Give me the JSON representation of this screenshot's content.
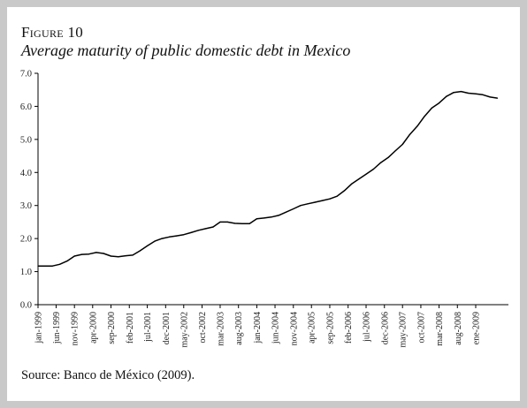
{
  "figure": {
    "label": "Figure 10",
    "title": "Average maturity of public domestic debt in Mexico",
    "source": "Source: Banco de México (2009)."
  },
  "chart_data": {
    "type": "line",
    "title": "Average maturity of public domestic debt in Mexico",
    "xlabel": "",
    "ylabel": "",
    "ylim": [
      0,
      7
    ],
    "yticks": [
      "0.0",
      "1.0",
      "2.0",
      "3.0",
      "4.0",
      "5.0",
      "6.0",
      "7.0"
    ],
    "xticks": [
      "jan-1999",
      "jun-1999",
      "nov-1999",
      "apr-2000",
      "sep-2000",
      "feb-2001",
      "jul-2001",
      "dec-2001",
      "may-2002",
      "oct-2002",
      "mar-2003",
      "aug-2003",
      "jan-2004",
      "jun-2004",
      "nov-2004",
      "apr-2005",
      "sep-2005",
      "feb-2006",
      "jul-2006",
      "dec-2006",
      "may-2007",
      "oct-2007",
      "mar-2008",
      "aug-2008",
      "ene-2009"
    ],
    "grid": false,
    "legend": "none",
    "line_color": "#000000",
    "series": [
      {
        "x": [
          "1999-01",
          "1999-03",
          "1999-05",
          "1999-07",
          "1999-09",
          "1999-11",
          "2000-01",
          "2000-03",
          "2000-05",
          "2000-07",
          "2000-09",
          "2000-11",
          "2001-01",
          "2001-03",
          "2001-05",
          "2001-07",
          "2001-09",
          "2001-11",
          "2002-01",
          "2002-03",
          "2002-05",
          "2002-07",
          "2002-09",
          "2002-11",
          "2003-01",
          "2003-03",
          "2003-05",
          "2003-07",
          "2003-09",
          "2003-11",
          "2004-01",
          "2004-03",
          "2004-05",
          "2004-07",
          "2004-09",
          "2004-11",
          "2005-01",
          "2005-03",
          "2005-05",
          "2005-07",
          "2005-09",
          "2005-11",
          "2006-01",
          "2006-03",
          "2006-05",
          "2006-07",
          "2006-09",
          "2006-11",
          "2007-01",
          "2007-03",
          "2007-05",
          "2007-07",
          "2007-09",
          "2007-11",
          "2008-01",
          "2008-03",
          "2008-05",
          "2008-07",
          "2008-09",
          "2008-11",
          "2009-01",
          "2009-03",
          "2009-05",
          "2009-07"
        ],
        "values": [
          1.17,
          1.17,
          1.17,
          1.22,
          1.32,
          1.47,
          1.52,
          1.53,
          1.58,
          1.55,
          1.47,
          1.45,
          1.48,
          1.5,
          1.63,
          1.78,
          1.92,
          2.0,
          2.05,
          2.08,
          2.12,
          2.18,
          2.25,
          2.3,
          2.35,
          2.5,
          2.5,
          2.46,
          2.45,
          2.45,
          2.6,
          2.62,
          2.65,
          2.7,
          2.8,
          2.9,
          3.0,
          3.05,
          3.1,
          3.15,
          3.2,
          3.28,
          3.45,
          3.65,
          3.8,
          3.95,
          4.1,
          4.3,
          4.45,
          4.65,
          4.85,
          5.15,
          5.4,
          5.7,
          5.95,
          6.1,
          6.3,
          6.42,
          6.45,
          6.4,
          6.38,
          6.35,
          6.28,
          6.25
        ]
      }
    ]
  }
}
